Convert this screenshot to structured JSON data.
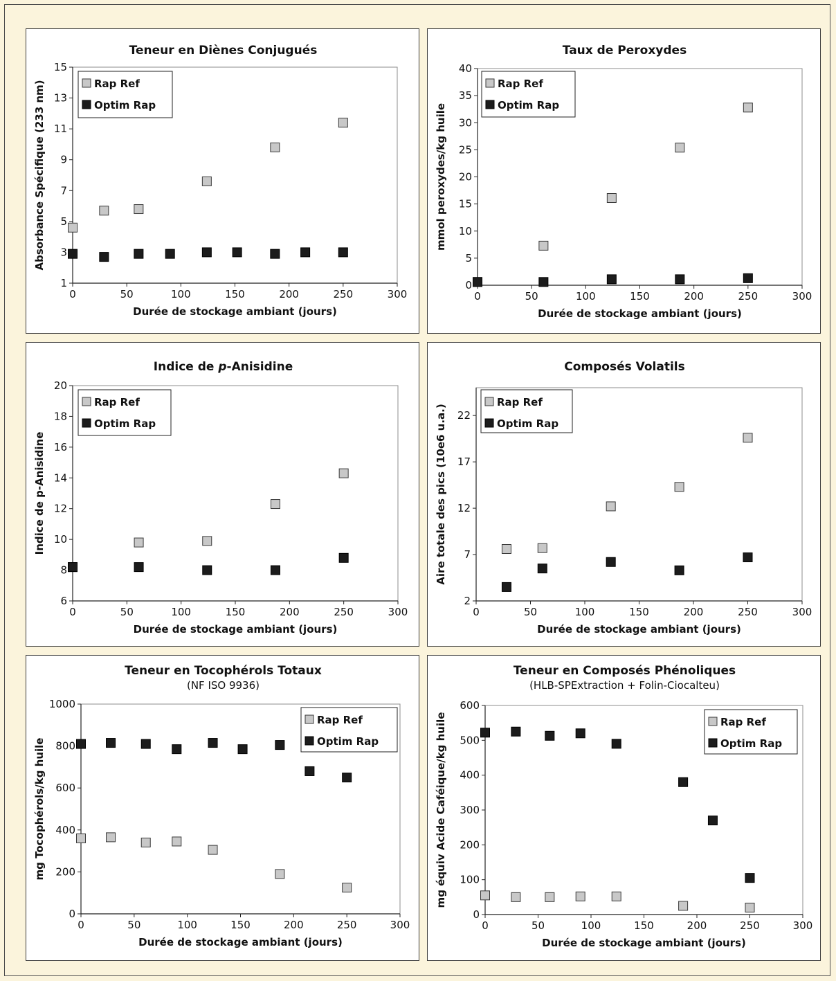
{
  "colors": {
    "background": "#fbf4dc",
    "rap_ref": "#c8c8c8",
    "optim_rap": "#1c1c1c"
  },
  "chart_data": [
    {
      "type": "scatter",
      "title": "Teneur en Diènes Conjugués",
      "xlabel": "Durée de stockage ambiant (jours)",
      "ylabel": "Absorbance Spécifique (233 nm)",
      "xlim": [
        0,
        300
      ],
      "ylim": [
        1,
        15
      ],
      "xticks": [
        0,
        50,
        100,
        150,
        200,
        250,
        300
      ],
      "yticks": [
        1,
        3,
        5,
        7,
        9,
        11,
        13,
        15
      ],
      "legend": "top-left",
      "series": [
        {
          "name": "Rap Ref",
          "x": [
            0,
            29,
            61,
            124,
            187,
            250
          ],
          "y": [
            4.6,
            5.7,
            5.8,
            7.6,
            9.8,
            11.4
          ]
        },
        {
          "name": "Optim Rap",
          "x": [
            0,
            29,
            61,
            90,
            124,
            152,
            187,
            215,
            250
          ],
          "y": [
            2.9,
            2.7,
            2.9,
            2.9,
            3.0,
            3.0,
            2.9,
            3.0,
            3.0
          ]
        }
      ]
    },
    {
      "type": "scatter",
      "title": "Taux de Peroxydes",
      "xlabel": "Durée de stockage ambiant (jours)",
      "ylabel": "mmol peroxydes/kg huile",
      "xlim": [
        0,
        300
      ],
      "ylim": [
        0,
        40
      ],
      "xticks": [
        0,
        50,
        100,
        150,
        200,
        250,
        300
      ],
      "yticks": [
        0,
        5,
        10,
        15,
        20,
        25,
        30,
        35,
        40
      ],
      "legend": "top-left",
      "series": [
        {
          "name": "Rap Ref",
          "x": [
            0,
            61,
            124,
            187,
            250
          ],
          "y": [
            0.6,
            7.3,
            16.1,
            25.4,
            32.8
          ]
        },
        {
          "name": "Optim Rap",
          "x": [
            0,
            61,
            124,
            187,
            250
          ],
          "y": [
            0.6,
            0.6,
            1.1,
            1.1,
            1.3
          ]
        }
      ]
    },
    {
      "type": "scatter",
      "title": "Indice de p-Anisidine",
      "title_parts": [
        "Indice de ",
        "p",
        "-Anisidine"
      ],
      "xlabel": "Durée de stockage ambiant (jours)",
      "ylabel": "Indice de p-Anisidine",
      "xlim": [
        0,
        300
      ],
      "ylim": [
        6,
        20
      ],
      "xticks": [
        0,
        50,
        100,
        150,
        200,
        250,
        300
      ],
      "yticks": [
        6,
        8,
        10,
        12,
        14,
        16,
        18,
        20
      ],
      "legend": "top-left",
      "series": [
        {
          "name": "Rap Ref",
          "x": [
            0,
            61,
            124,
            187,
            250
          ],
          "y": [
            8.2,
            9.8,
            9.9,
            12.3,
            14.3
          ]
        },
        {
          "name": "Optim Rap",
          "x": [
            0,
            61,
            124,
            187,
            250
          ],
          "y": [
            8.2,
            8.2,
            8.0,
            8.0,
            8.8
          ]
        }
      ]
    },
    {
      "type": "scatter",
      "title": "Composés Volatils",
      "xlabel": "Durée de stockage ambiant (jours)",
      "ylabel": "Aire totale des pics (10e6 u.a.)",
      "xlim": [
        0,
        300
      ],
      "ylim": [
        2,
        25
      ],
      "xticks": [
        0,
        50,
        100,
        150,
        200,
        250,
        300
      ],
      "yticks": [
        2,
        7,
        12,
        17,
        22
      ],
      "legend": "top-left",
      "series": [
        {
          "name": "Rap Ref",
          "x": [
            28,
            61,
            124,
            187,
            250
          ],
          "y": [
            7.6,
            7.7,
            12.2,
            14.3,
            19.6
          ]
        },
        {
          "name": "Optim Rap",
          "x": [
            28,
            61,
            124,
            187,
            250
          ],
          "y": [
            3.5,
            5.5,
            6.2,
            5.3,
            6.7
          ]
        }
      ]
    },
    {
      "type": "scatter",
      "title": "Teneur en Tocophérols Totaux",
      "subtitle": "(NF ISO 9936)",
      "xlabel": "Durée de stockage ambiant (jours)",
      "ylabel": "mg Tocophérols/kg huile",
      "xlim": [
        0,
        300
      ],
      "ylim": [
        0,
        1000
      ],
      "xticks": [
        0,
        50,
        100,
        150,
        200,
        250,
        300
      ],
      "yticks": [
        0,
        200,
        400,
        600,
        800,
        1000
      ],
      "legend": "top-right",
      "series": [
        {
          "name": "Rap Ref",
          "x": [
            0,
            28,
            61,
            90,
            124,
            187,
            250
          ],
          "y": [
            360,
            365,
            340,
            345,
            305,
            190,
            125
          ]
        },
        {
          "name": "Optim Rap",
          "x": [
            0,
            28,
            61,
            90,
            124,
            152,
            187,
            215,
            250
          ],
          "y": [
            810,
            815,
            810,
            785,
            815,
            785,
            805,
            680,
            650
          ]
        }
      ]
    },
    {
      "type": "scatter",
      "title": "Teneur en Composés Phénoliques",
      "subtitle": "(HLB-SPExtraction + Folin-Ciocalteu)",
      "xlabel": "Durée de stockage ambiant (jours)",
      "ylabel": "mg équiv Acide Caféique/kg huile",
      "xlim": [
        0,
        300
      ],
      "ylim": [
        0,
        600
      ],
      "xticks": [
        0,
        50,
        100,
        150,
        200,
        250,
        300
      ],
      "yticks": [
        0,
        100,
        200,
        300,
        400,
        500,
        600
      ],
      "legend": "top-right",
      "series": [
        {
          "name": "Rap Ref",
          "x": [
            0,
            29,
            61,
            90,
            124,
            187,
            250
          ],
          "y": [
            55,
            50,
            50,
            52,
            52,
            25,
            20
          ]
        },
        {
          "name": "Optim Rap",
          "x": [
            0,
            29,
            61,
            90,
            124,
            187,
            215,
            250
          ],
          "y": [
            522,
            525,
            513,
            520,
            490,
            380,
            270,
            105
          ]
        }
      ]
    }
  ]
}
